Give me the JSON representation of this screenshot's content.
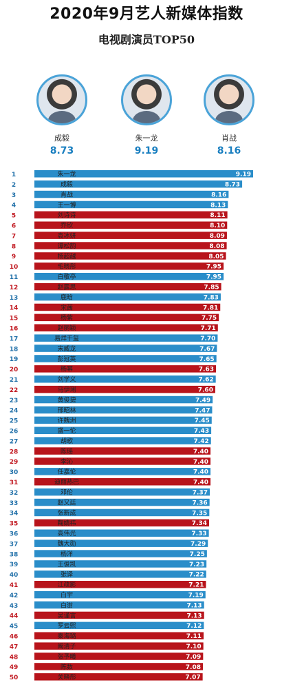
{
  "title": "2020年9月艺人新媒体指数",
  "subtitle": "电视剧演员TOP50",
  "podium": [
    {
      "name": "成毅",
      "score": "8.73"
    },
    {
      "name": "朱一龙",
      "score": "9.19"
    },
    {
      "name": "肖战",
      "score": "8.16"
    }
  ],
  "colors": {
    "blue": "#2a8dc9",
    "red": "#b8141b",
    "rank_red": "#c0161e",
    "rank_blue": "#1f6fa8"
  },
  "chart_data": {
    "type": "bar",
    "orientation": "horizontal",
    "title": "",
    "xlabel": "",
    "ylabel": "",
    "xlim": [
      0,
      9.19
    ],
    "ranks": [
      1,
      2,
      3,
      4,
      5,
      6,
      7,
      8,
      9,
      10,
      11,
      12,
      13,
      14,
      15,
      16,
      17,
      18,
      19,
      20,
      21,
      22,
      23,
      24,
      25,
      26,
      27,
      28,
      29,
      30,
      31,
      32,
      33,
      34,
      35,
      36,
      37,
      38,
      39,
      40,
      41,
      42,
      43,
      44,
      45,
      46,
      47,
      48,
      49,
      50
    ],
    "categories": [
      "朱一龙",
      "成毅",
      "肖战",
      "王一博",
      "刘诗诗",
      "乔欣",
      "袁冰妍",
      "谭松韵",
      "杨超越",
      "毛晓彤",
      "白敬亭",
      "赵露思",
      "鹿晗",
      "宋茜",
      "杨紫",
      "赵丽颖",
      "易烊千玺",
      "宋威龙",
      "彭冠英",
      "杨幂",
      "刘学义",
      "马伊琍",
      "黄俊捷",
      "邢昭林",
      "许魏洲",
      "盛一伦",
      "胡歌",
      "陈瑶",
      "李沁",
      "任嘉伦",
      "迪丽热巴",
      "邓伦",
      "赵又廷",
      "张新成",
      "鞠婧祎",
      "高伟光",
      "魏大勋",
      "杨洋",
      "王俊凯",
      "张译",
      "江疏影",
      "白宇",
      "白澍",
      "吴谨言",
      "罗云熙",
      "秦海璐",
      "阚清子",
      "张予曦",
      "陈数",
      "关晓彤"
    ],
    "values": [
      9.19,
      8.73,
      8.16,
      8.13,
      8.11,
      8.1,
      8.09,
      8.08,
      8.05,
      7.95,
      7.95,
      7.85,
      7.83,
      7.81,
      7.75,
      7.71,
      7.7,
      7.67,
      7.65,
      7.63,
      7.62,
      7.6,
      7.49,
      7.47,
      7.45,
      7.43,
      7.42,
      7.4,
      7.4,
      7.4,
      7.4,
      7.37,
      7.36,
      7.35,
      7.34,
      7.33,
      7.29,
      7.25,
      7.23,
      7.22,
      7.21,
      7.19,
      7.13,
      7.13,
      7.12,
      7.11,
      7.1,
      7.09,
      7.08,
      7.07
    ],
    "labels": [
      "9.19",
      "8.73",
      "8.16",
      "8.13",
      "8.11",
      "8.10",
      "8.09",
      "8.08",
      "8.05",
      "7.95",
      "7.95",
      "7.85",
      "7.83",
      "7.81",
      "7.75",
      "7.71",
      "7.70",
      "7.67",
      "7.65",
      "7.63",
      "7.62",
      "7.60",
      "7.49",
      "7.47",
      "7.45",
      "7.43",
      "7.42",
      "7.40",
      "7.40",
      "7.40",
      "7.40",
      "7.37",
      "7.36",
      "7.35",
      "7.34",
      "7.33",
      "7.29",
      "7.25",
      "7.23",
      "7.22",
      "7.21",
      "7.19",
      "7.13",
      "7.13",
      "7.12",
      "7.11",
      "7.10",
      "7.09",
      "7.08",
      "7.07"
    ],
    "bar_colors": [
      "blue",
      "blue",
      "blue",
      "blue",
      "red",
      "red",
      "red",
      "red",
      "red",
      "red",
      "blue",
      "red",
      "blue",
      "red",
      "red",
      "red",
      "blue",
      "blue",
      "blue",
      "red",
      "blue",
      "red",
      "blue",
      "blue",
      "blue",
      "blue",
      "blue",
      "red",
      "red",
      "blue",
      "red",
      "blue",
      "blue",
      "blue",
      "red",
      "blue",
      "blue",
      "blue",
      "blue",
      "blue",
      "red",
      "blue",
      "blue",
      "red",
      "blue",
      "red",
      "red",
      "red",
      "red",
      "red"
    ],
    "grid": false,
    "legend": "none"
  }
}
